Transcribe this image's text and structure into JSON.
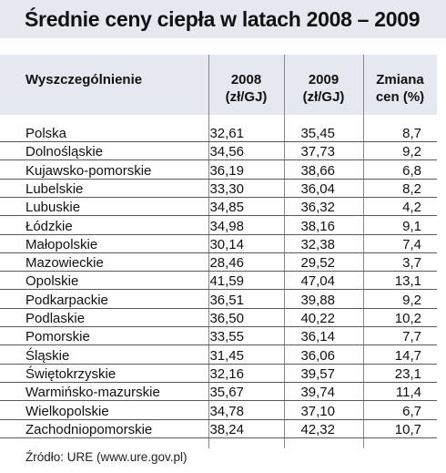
{
  "title": "Średnie ceny ciepła w latach 2008 – 2009",
  "headers": {
    "region": "Wyszczególnienie",
    "y2008": "2008",
    "y2008_unit": "(zł/GJ)",
    "y2009": "2009",
    "y2009_unit": "(zł/GJ)",
    "change": "Zmiana",
    "change_unit": "cen (%)"
  },
  "rows": [
    {
      "name": "Polska",
      "v2008": "32,61",
      "v2009": "35,45",
      "change": "8,7"
    },
    {
      "name": "Dolnośląskie",
      "v2008": "34,56",
      "v2009": "37,73",
      "change": "9,2"
    },
    {
      "name": "Kujawsko-pomorskie",
      "v2008": "36,19",
      "v2009": "38,66",
      "change": "6,8"
    },
    {
      "name": "Lubelskie",
      "v2008": "33,30",
      "v2009": "36,04",
      "change": "8,2"
    },
    {
      "name": "Lubuskie",
      "v2008": "34,85",
      "v2009": "36,32",
      "change": "4,2"
    },
    {
      "name": "Łódzkie",
      "v2008": "34,98",
      "v2009": "38,16",
      "change": "9,1"
    },
    {
      "name": "Małopolskie",
      "v2008": "30,14",
      "v2009": "32,38",
      "change": "7,4"
    },
    {
      "name": "Mazowieckie",
      "v2008": "28,46",
      "v2009": "29,52",
      "change": "3,7"
    },
    {
      "name": "Opolskie",
      "v2008": "41,59",
      "v2009": "47,04",
      "change": "13,1"
    },
    {
      "name": "Podkarpackie",
      "v2008": "36,51",
      "v2009": "39,88",
      "change": "9,2"
    },
    {
      "name": "Podlaskie",
      "v2008": "36,50",
      "v2009": "40,22",
      "change": "10,2"
    },
    {
      "name": "Pomorskie",
      "v2008": "33,55",
      "v2009": "36,14",
      "change": "7,7"
    },
    {
      "name": "Śląskie",
      "v2008": "31,45",
      "v2009": "36,06",
      "change": "14,7"
    },
    {
      "name": "Świętokrzyskie",
      "v2008": "32,16",
      "v2009": "39,57",
      "change": "23,1"
    },
    {
      "name": "Warmińsko-mazurskie",
      "v2008": "35,67",
      "v2009": "39,74",
      "change": "11,4"
    },
    {
      "name": "Wielkopolskie",
      "v2008": "34,78",
      "v2009": "37,10",
      "change": "6,7"
    },
    {
      "name": "Zachodniopomorskie",
      "v2008": "38,24",
      "v2009": "42,32",
      "change": "10,7"
    }
  ],
  "source": "Źródło: URE (www.ure.gov.pl)"
}
